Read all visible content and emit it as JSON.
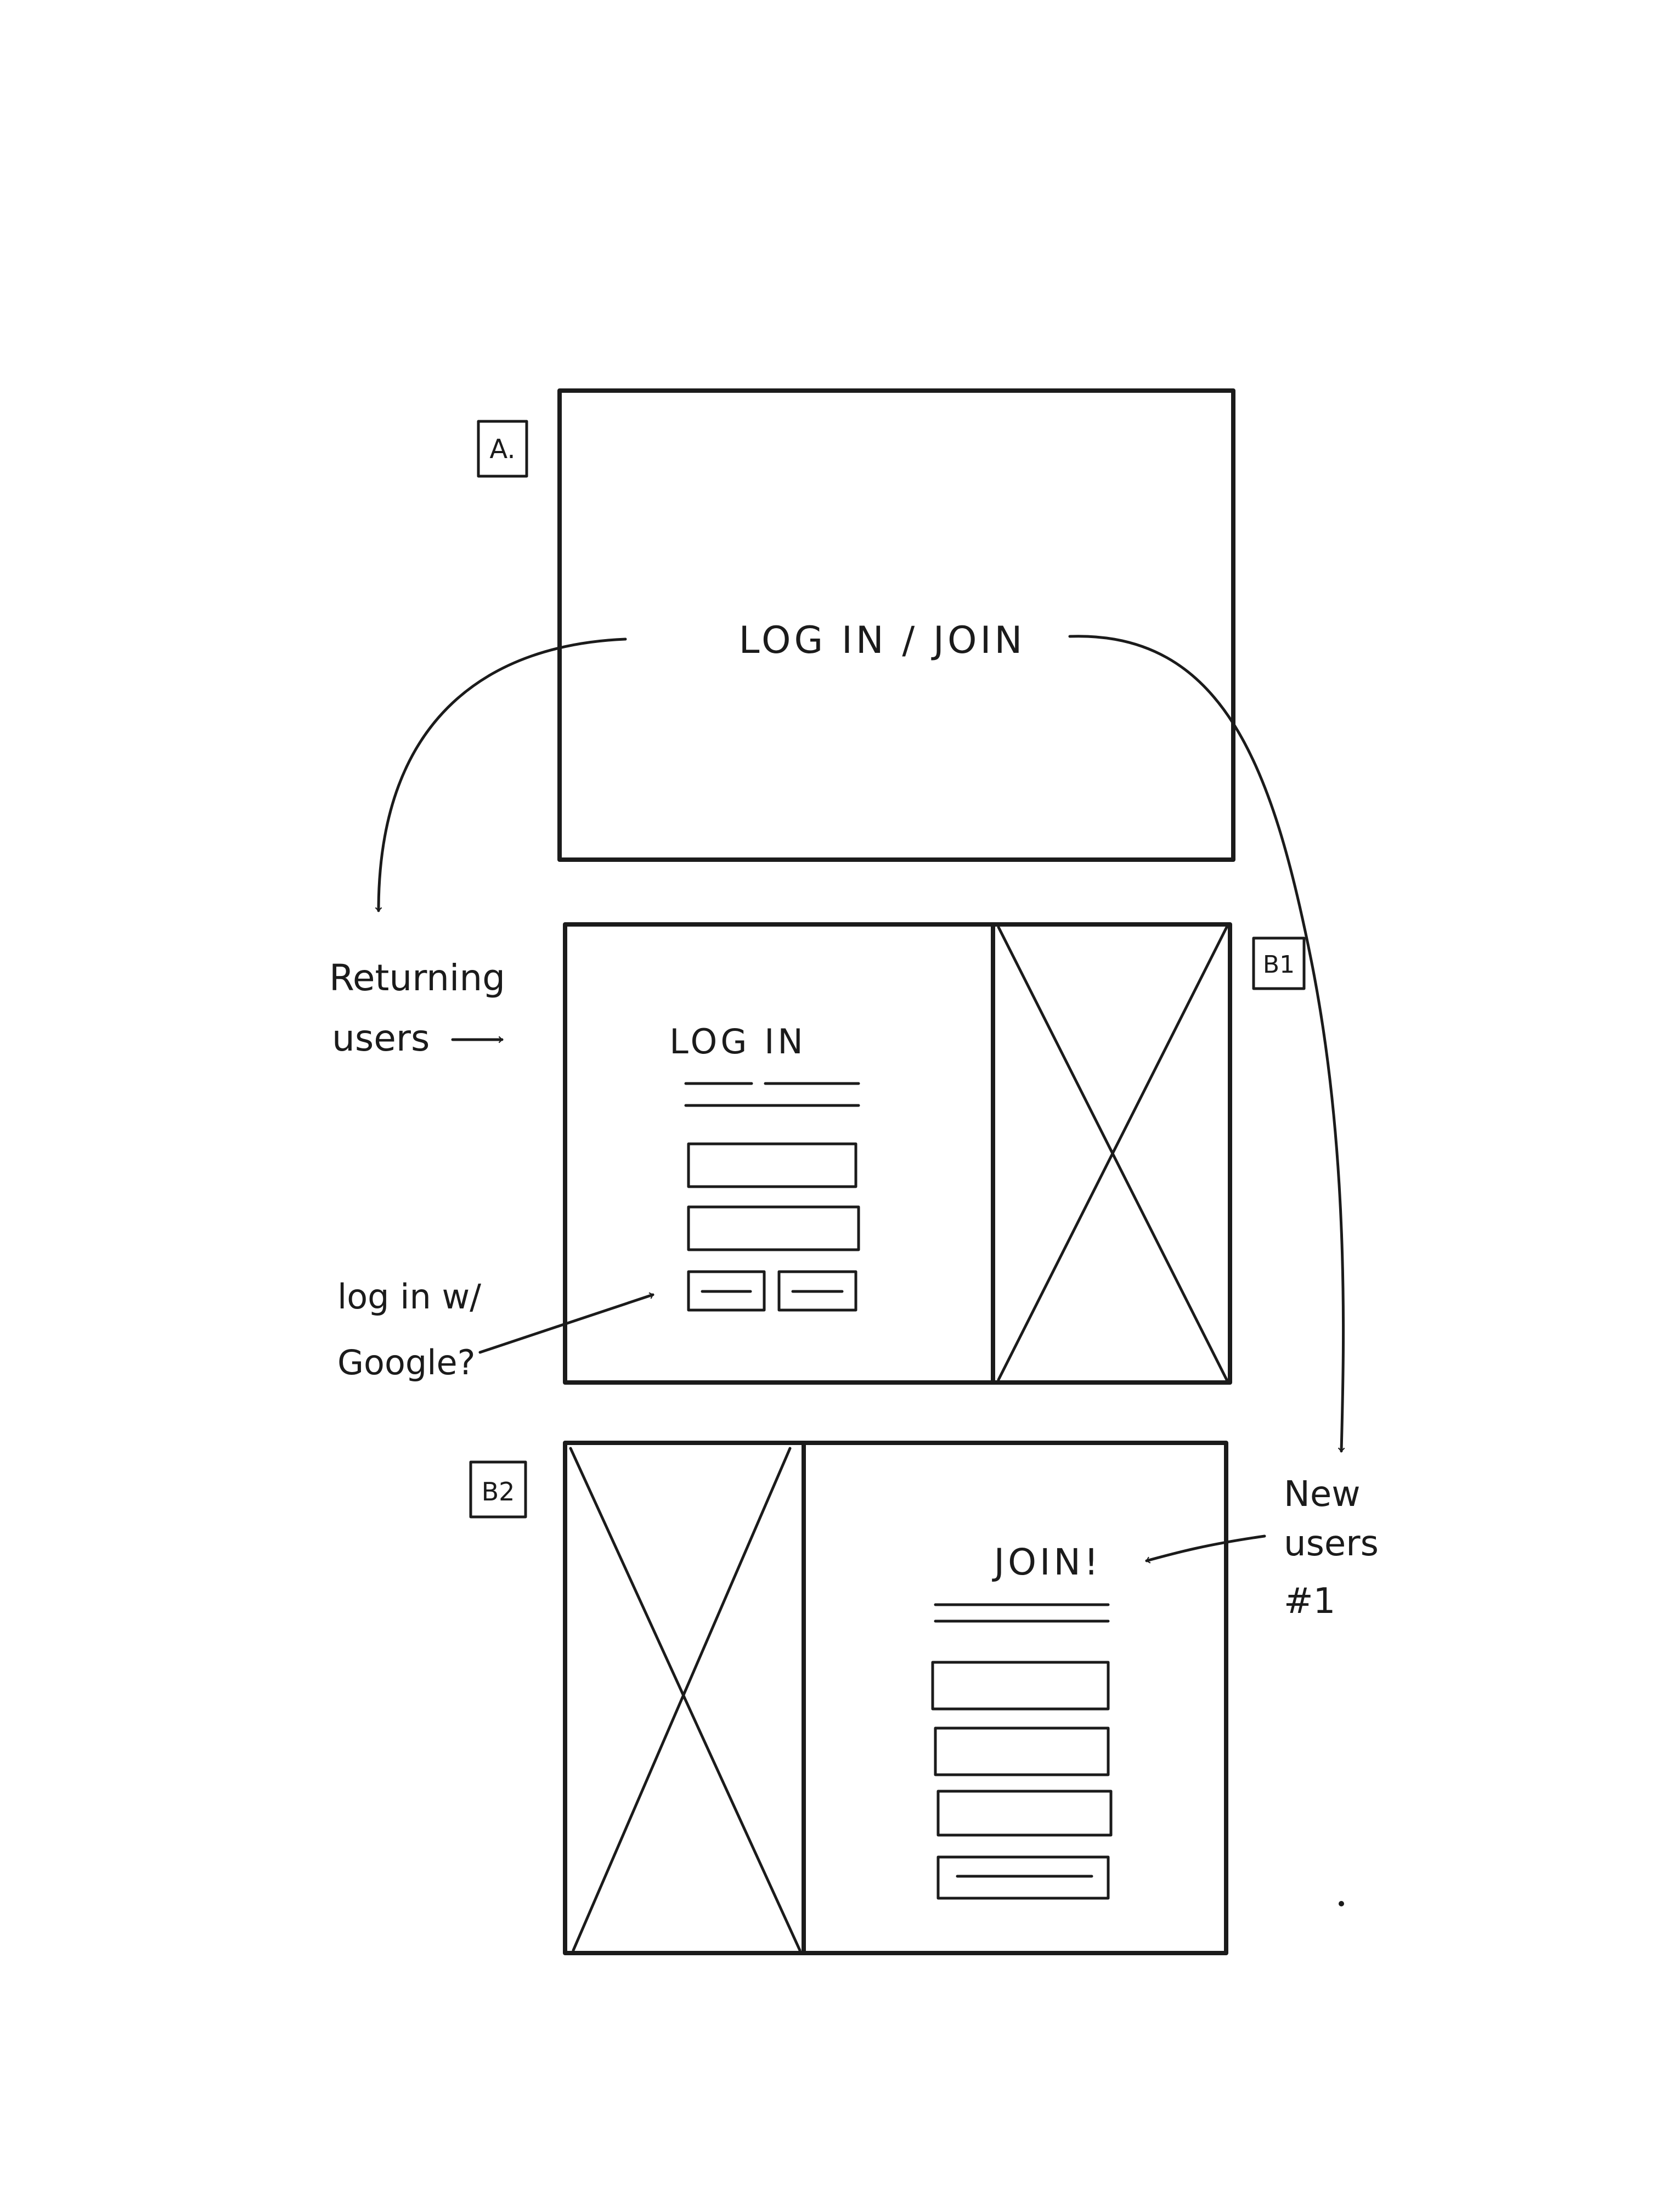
{
  "frame_a": {
    "tag": "A.",
    "cta": "LOG IN  /  JOIN"
  },
  "frame_b1": {
    "tag": "B1",
    "heading": "LOG IN"
  },
  "frame_b2": {
    "tag": "B2",
    "heading": "JOIN!"
  },
  "notes": {
    "returning_1": "Returning",
    "returning_2": "users",
    "google_1": "log in w/",
    "google_2": "Google?",
    "new_1": "New",
    "new_2": "users",
    "new_3": "#1"
  }
}
